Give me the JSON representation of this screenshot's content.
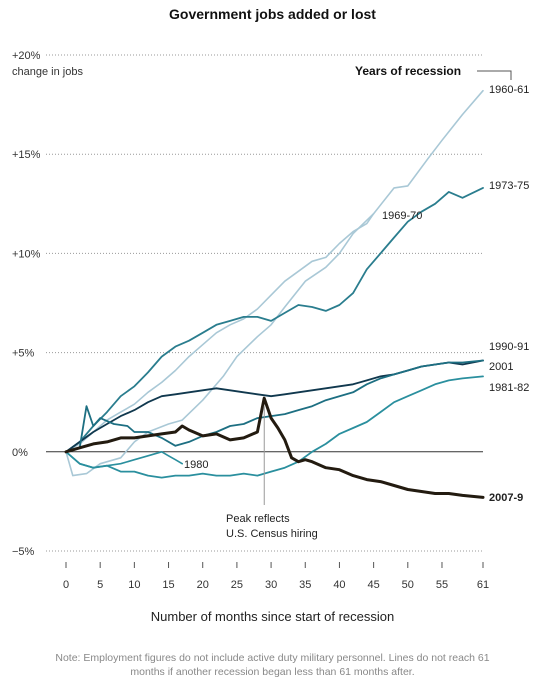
{
  "chart_data": {
    "type": "line",
    "title": "Government jobs added or lost",
    "ylabel": "change in jobs",
    "xlabel": "Number of months since start of recession",
    "xlim": [
      0,
      61
    ],
    "ylim": [
      -5,
      20
    ],
    "yticks": [
      {
        "value": 20,
        "label": "+20%"
      },
      {
        "value": 15,
        "label": "+15%"
      },
      {
        "value": 10,
        "label": "+10%"
      },
      {
        "value": 5,
        "label": "+5%"
      },
      {
        "value": 0,
        "label": "0%"
      },
      {
        "value": -5,
        "label": "−5%"
      }
    ],
    "xticks": [
      0,
      5,
      10,
      15,
      20,
      25,
      30,
      35,
      40,
      45,
      50,
      55,
      61
    ],
    "legend_title": "Years of recession",
    "annotation": {
      "x": 29,
      "y": 2.7,
      "lines": [
        "Peak reflects",
        "U.S. Census hiring"
      ]
    },
    "note": "Note: Employment figures do not include active duty military personnel. Lines do not reach 61 months if another recession began less than 61 months after.",
    "series": [
      {
        "name": "1960-61",
        "color": "#a9c8d6",
        "width": 1.6,
        "bold": false,
        "points": [
          [
            0,
            0
          ],
          [
            1,
            -1.2
          ],
          [
            3,
            -1.1
          ],
          [
            5,
            -0.6
          ],
          [
            8,
            -0.3
          ],
          [
            10,
            0.5
          ],
          [
            12,
            1.0
          ],
          [
            15,
            1.4
          ],
          [
            17,
            1.6
          ],
          [
            20,
            2.6
          ],
          [
            23,
            3.8
          ],
          [
            25,
            4.8
          ],
          [
            28,
            5.8
          ],
          [
            30,
            6.4
          ],
          [
            32,
            7.3
          ],
          [
            35,
            8.6
          ],
          [
            38,
            9.3
          ],
          [
            40,
            10.0
          ],
          [
            42,
            11.0
          ],
          [
            45,
            12.0
          ],
          [
            48,
            13.3
          ],
          [
            50,
            13.4
          ],
          [
            53,
            14.8
          ],
          [
            55,
            15.7
          ],
          [
            58,
            17.0
          ],
          [
            61,
            18.2
          ]
        ]
      },
      {
        "name": "1969-70",
        "color": "#a9c8d6",
        "width": 1.6,
        "bold": false,
        "points": [
          [
            0,
            0
          ],
          [
            2,
            0.4
          ],
          [
            4,
            1.0
          ],
          [
            6,
            1.6
          ],
          [
            8,
            2.0
          ],
          [
            10,
            2.4
          ],
          [
            12,
            3.0
          ],
          [
            14,
            3.5
          ],
          [
            16,
            4.1
          ],
          [
            18,
            4.8
          ],
          [
            20,
            5.4
          ],
          [
            22,
            6.0
          ],
          [
            24,
            6.4
          ],
          [
            26,
            6.7
          ],
          [
            28,
            7.2
          ],
          [
            30,
            7.9
          ],
          [
            32,
            8.6
          ],
          [
            34,
            9.1
          ],
          [
            36,
            9.6
          ],
          [
            38,
            9.8
          ],
          [
            40,
            10.5
          ],
          [
            42,
            11.1
          ],
          [
            44,
            11.5
          ],
          [
            45,
            12.0
          ]
        ]
      },
      {
        "name": "1973-75",
        "color": "#2a7d8e",
        "width": 1.8,
        "bold": false,
        "points": [
          [
            0,
            0
          ],
          [
            2,
            0.5
          ],
          [
            4,
            1.3
          ],
          [
            6,
            2.0
          ],
          [
            8,
            2.8
          ],
          [
            10,
            3.3
          ],
          [
            12,
            4.0
          ],
          [
            14,
            4.8
          ],
          [
            16,
            5.3
          ],
          [
            18,
            5.6
          ],
          [
            20,
            6.0
          ],
          [
            22,
            6.4
          ],
          [
            24,
            6.6
          ],
          [
            26,
            6.8
          ],
          [
            28,
            6.8
          ],
          [
            30,
            6.6
          ],
          [
            32,
            7.0
          ],
          [
            34,
            7.4
          ],
          [
            36,
            7.3
          ],
          [
            38,
            7.1
          ],
          [
            40,
            7.4
          ],
          [
            42,
            8.0
          ],
          [
            44,
            9.2
          ],
          [
            46,
            10.0
          ],
          [
            48,
            10.8
          ],
          [
            50,
            11.6
          ],
          [
            52,
            12.1
          ],
          [
            54,
            12.5
          ],
          [
            56,
            13.1
          ],
          [
            58,
            12.8
          ],
          [
            61,
            13.3
          ]
        ]
      },
      {
        "name": "1990-91",
        "color": "#10384e",
        "width": 1.8,
        "bold": false,
        "points": [
          [
            0,
            0
          ],
          [
            2,
            0.5
          ],
          [
            4,
            1.0
          ],
          [
            6,
            1.4
          ],
          [
            8,
            1.8
          ],
          [
            10,
            2.1
          ],
          [
            12,
            2.5
          ],
          [
            14,
            2.8
          ],
          [
            16,
            2.9
          ],
          [
            18,
            3.0
          ],
          [
            20,
            3.1
          ],
          [
            22,
            3.2
          ],
          [
            24,
            3.1
          ],
          [
            26,
            3.0
          ],
          [
            28,
            2.9
          ],
          [
            30,
            2.8
          ],
          [
            32,
            2.9
          ],
          [
            34,
            3.0
          ],
          [
            36,
            3.1
          ],
          [
            38,
            3.2
          ],
          [
            40,
            3.3
          ],
          [
            42,
            3.4
          ],
          [
            44,
            3.6
          ],
          [
            46,
            3.8
          ],
          [
            48,
            3.9
          ],
          [
            50,
            4.1
          ],
          [
            52,
            4.3
          ],
          [
            54,
            4.4
          ],
          [
            56,
            4.5
          ],
          [
            58,
            4.4
          ],
          [
            61,
            4.6
          ]
        ]
      },
      {
        "name": "2001",
        "color": "#1d6f82",
        "width": 1.8,
        "bold": false,
        "points": [
          [
            0,
            0
          ],
          [
            2,
            0.2
          ],
          [
            3,
            2.3
          ],
          [
            4,
            1.3
          ],
          [
            5,
            1.7
          ],
          [
            7,
            1.4
          ],
          [
            9,
            1.3
          ],
          [
            10,
            1.0
          ],
          [
            12,
            1.0
          ],
          [
            14,
            0.7
          ],
          [
            16,
            0.3
          ],
          [
            18,
            0.5
          ],
          [
            20,
            0.8
          ],
          [
            22,
            1.0
          ],
          [
            24,
            1.3
          ],
          [
            26,
            1.4
          ],
          [
            28,
            1.7
          ],
          [
            30,
            1.8
          ],
          [
            32,
            1.9
          ],
          [
            34,
            2.1
          ],
          [
            36,
            2.3
          ],
          [
            38,
            2.6
          ],
          [
            40,
            2.8
          ],
          [
            42,
            3.0
          ],
          [
            44,
            3.4
          ],
          [
            46,
            3.7
          ],
          [
            48,
            3.9
          ],
          [
            50,
            4.1
          ],
          [
            52,
            4.3
          ],
          [
            54,
            4.4
          ],
          [
            56,
            4.5
          ],
          [
            58,
            4.5
          ],
          [
            61,
            4.6
          ]
        ]
      },
      {
        "name": "1981-82",
        "color": "#2a8f9e",
        "width": 1.8,
        "bold": false,
        "points": [
          [
            0,
            0
          ],
          [
            2,
            -0.6
          ],
          [
            4,
            -0.8
          ],
          [
            6,
            -0.7
          ],
          [
            8,
            -1.0
          ],
          [
            10,
            -1.0
          ],
          [
            12,
            -1.2
          ],
          [
            14,
            -1.3
          ],
          [
            16,
            -1.2
          ],
          [
            18,
            -1.2
          ],
          [
            20,
            -1.1
          ],
          [
            22,
            -1.2
          ],
          [
            24,
            -1.2
          ],
          [
            26,
            -1.1
          ],
          [
            28,
            -1.2
          ],
          [
            30,
            -1.0
          ],
          [
            32,
            -0.8
          ],
          [
            34,
            -0.5
          ],
          [
            36,
            0.0
          ],
          [
            38,
            0.4
          ],
          [
            40,
            0.9
          ],
          [
            42,
            1.2
          ],
          [
            44,
            1.5
          ],
          [
            46,
            2.0
          ],
          [
            48,
            2.5
          ],
          [
            50,
            2.8
          ],
          [
            52,
            3.1
          ],
          [
            54,
            3.4
          ],
          [
            56,
            3.6
          ],
          [
            58,
            3.7
          ],
          [
            61,
            3.8
          ]
        ]
      },
      {
        "name": "1980",
        "color": "#2a8f9e",
        "width": 1.6,
        "bold": false,
        "points": [
          [
            0,
            0
          ],
          [
            2,
            -0.6
          ],
          [
            4,
            -0.8
          ],
          [
            6,
            -0.7
          ],
          [
            8,
            -0.6
          ],
          [
            10,
            -0.4
          ],
          [
            12,
            -0.2
          ],
          [
            14,
            0.0
          ],
          [
            15,
            -0.2
          ],
          [
            16,
            -0.4
          ],
          [
            17,
            -0.6
          ]
        ]
      },
      {
        "name": "2007-9",
        "color": "#231b10",
        "width": 3.0,
        "bold": true,
        "points": [
          [
            0,
            0
          ],
          [
            2,
            0.2
          ],
          [
            4,
            0.4
          ],
          [
            6,
            0.5
          ],
          [
            8,
            0.7
          ],
          [
            10,
            0.7
          ],
          [
            12,
            0.8
          ],
          [
            14,
            0.9
          ],
          [
            16,
            1.0
          ],
          [
            17,
            1.3
          ],
          [
            18,
            1.1
          ],
          [
            20,
            0.8
          ],
          [
            22,
            0.9
          ],
          [
            24,
            0.6
          ],
          [
            26,
            0.7
          ],
          [
            28,
            1.0
          ],
          [
            29,
            2.7
          ],
          [
            30,
            1.7
          ],
          [
            31,
            1.2
          ],
          [
            32,
            0.6
          ],
          [
            33,
            -0.3
          ],
          [
            34,
            -0.5
          ],
          [
            35,
            -0.4
          ],
          [
            36,
            -0.5
          ],
          [
            38,
            -0.8
          ],
          [
            40,
            -0.9
          ],
          [
            42,
            -1.2
          ],
          [
            44,
            -1.4
          ],
          [
            46,
            -1.5
          ],
          [
            48,
            -1.7
          ],
          [
            50,
            -1.9
          ],
          [
            52,
            -2.0
          ],
          [
            54,
            -2.1
          ],
          [
            56,
            -2.1
          ],
          [
            58,
            -2.2
          ],
          [
            61,
            -2.3
          ]
        ]
      }
    ]
  }
}
